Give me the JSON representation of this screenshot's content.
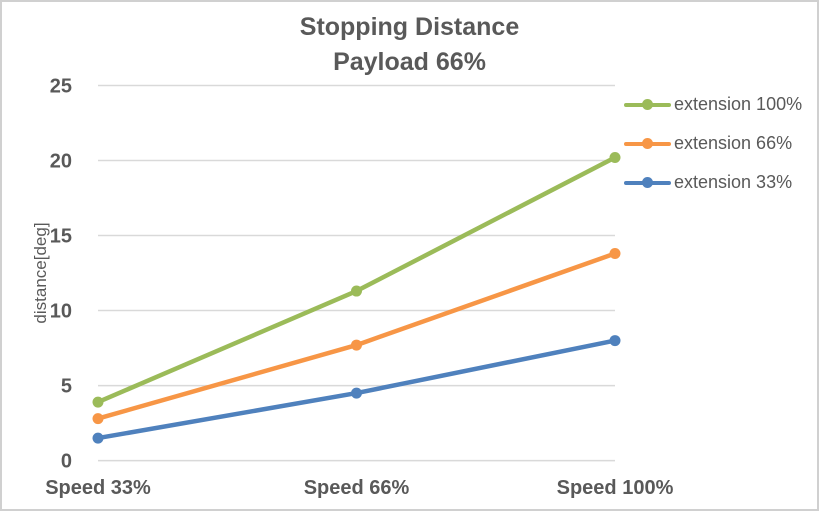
{
  "chart_data": {
    "type": "line",
    "title": "Stopping Distance",
    "subtitle": "Payload 66%",
    "xlabel": "",
    "ylabel": "distance[deg]",
    "categories": [
      "Speed 33%",
      "Speed 66%",
      "Speed 100%"
    ],
    "yticks": [
      0,
      5,
      10,
      15,
      20,
      25
    ],
    "ylim": [
      0,
      25
    ],
    "grid": true,
    "legend_position": "right",
    "marker": "circle",
    "series": [
      {
        "name": "extension 100%",
        "color": "#9BBB59",
        "values": [
          3.9,
          11.3,
          20.2
        ]
      },
      {
        "name": "extension 66%",
        "color": "#F79646",
        "values": [
          2.8,
          7.7,
          13.8
        ]
      },
      {
        "name": "extension 33%",
        "color": "#4F81BD",
        "values": [
          1.5,
          4.5,
          8.0
        ]
      }
    ],
    "colors": {
      "text": "#595959",
      "grid": "#D9D9D9",
      "background": "#FFFFFF",
      "border": "#D0D0D0"
    }
  }
}
